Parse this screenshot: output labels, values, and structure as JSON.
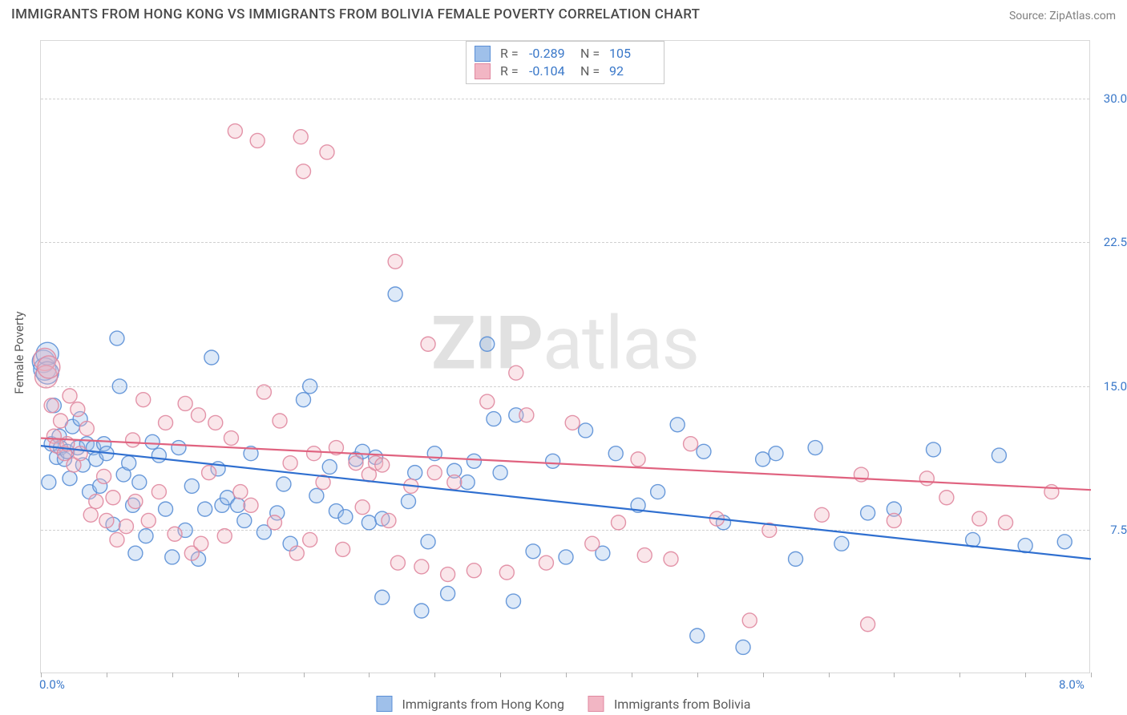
{
  "title": "IMMIGRANTS FROM HONG KONG VS IMMIGRANTS FROM BOLIVIA FEMALE POVERTY CORRELATION CHART",
  "source_label": "Source: ZipAtlas.com",
  "watermark_bold": "ZIP",
  "watermark_rest": "atlas",
  "y_axis_title": "Female Poverty",
  "chart": {
    "type": "scatter-with-regression",
    "xlim": [
      0.0,
      8.0
    ],
    "x_ticks_minor_step": 0.5,
    "x_labels": [
      {
        "v": 0.0,
        "text": "0.0%"
      },
      {
        "v": 8.0,
        "text": "8.0%"
      }
    ],
    "ylim": [
      0.0,
      33.0
    ],
    "y_gridlines": [
      7.5,
      15.0,
      22.5,
      30.0
    ],
    "y_labels": [
      "7.5%",
      "15.0%",
      "22.5%",
      "30.0%"
    ],
    "marker_radius": 9,
    "marker_radius_large": 14,
    "marker_fill_opacity": 0.35,
    "marker_stroke_opacity": 0.9,
    "grid_color": "#d0d0d0",
    "background_color": "#ffffff",
    "tick_label_color": "#3a78c9",
    "axis_title_color": "#5a5a5a",
    "series": [
      {
        "id": "hongkong",
        "label": "Immigrants from Hong Kong",
        "color_fill": "#9fc0ea",
        "color_stroke": "#5a8fd6",
        "line_color": "#2f6fd0",
        "line_width": 2.2,
        "R": "-0.289",
        "N": "105",
        "regression": {
          "x1": 0.0,
          "y1": 11.9,
          "x2": 8.0,
          "y2": 6.0
        },
        "points": [
          [
            0.02,
            16.3
          ],
          [
            0.03,
            15.9
          ],
          [
            0.05,
            16.7
          ],
          [
            0.05,
            15.7
          ],
          [
            0.06,
            10.0
          ],
          [
            0.08,
            12.0
          ],
          [
            0.1,
            14.0
          ],
          [
            0.12,
            11.3
          ],
          [
            0.14,
            12.4
          ],
          [
            0.15,
            11.8
          ],
          [
            0.18,
            11.2
          ],
          [
            0.2,
            11.6
          ],
          [
            0.22,
            10.2
          ],
          [
            0.24,
            12.9
          ],
          [
            0.28,
            11.8
          ],
          [
            0.3,
            13.3
          ],
          [
            0.32,
            10.9
          ],
          [
            0.35,
            12.0
          ],
          [
            0.37,
            9.5
          ],
          [
            0.4,
            11.8
          ],
          [
            0.42,
            11.2
          ],
          [
            0.45,
            9.8
          ],
          [
            0.48,
            12.0
          ],
          [
            0.5,
            11.5
          ],
          [
            0.55,
            7.8
          ],
          [
            0.58,
            17.5
          ],
          [
            0.6,
            15.0
          ],
          [
            0.63,
            10.4
          ],
          [
            0.67,
            11.0
          ],
          [
            0.7,
            8.8
          ],
          [
            0.72,
            6.3
          ],
          [
            0.75,
            10.0
          ],
          [
            0.8,
            7.2
          ],
          [
            0.85,
            12.1
          ],
          [
            0.9,
            11.4
          ],
          [
            0.95,
            8.6
          ],
          [
            1.0,
            6.1
          ],
          [
            1.05,
            11.8
          ],
          [
            1.1,
            7.5
          ],
          [
            1.15,
            9.8
          ],
          [
            1.2,
            6.0
          ],
          [
            1.25,
            8.6
          ],
          [
            1.3,
            16.5
          ],
          [
            1.35,
            10.7
          ],
          [
            1.38,
            8.8
          ],
          [
            1.42,
            9.2
          ],
          [
            1.5,
            8.8
          ],
          [
            1.55,
            8.0
          ],
          [
            1.6,
            11.5
          ],
          [
            1.7,
            7.4
          ],
          [
            1.8,
            8.4
          ],
          [
            1.85,
            9.9
          ],
          [
            1.9,
            6.8
          ],
          [
            2.0,
            14.3
          ],
          [
            2.05,
            15.0
          ],
          [
            2.1,
            9.3
          ],
          [
            2.2,
            10.8
          ],
          [
            2.25,
            8.5
          ],
          [
            2.32,
            8.2
          ],
          [
            2.4,
            11.2
          ],
          [
            2.45,
            11.6
          ],
          [
            2.5,
            7.9
          ],
          [
            2.55,
            11.3
          ],
          [
            2.6,
            8.1
          ],
          [
            2.6,
            4.0
          ],
          [
            2.7,
            19.8
          ],
          [
            2.8,
            9.0
          ],
          [
            2.85,
            10.5
          ],
          [
            2.9,
            3.3
          ],
          [
            2.95,
            6.9
          ],
          [
            3.0,
            11.5
          ],
          [
            3.1,
            4.2
          ],
          [
            3.15,
            10.6
          ],
          [
            3.25,
            10.0
          ],
          [
            3.3,
            11.1
          ],
          [
            3.4,
            17.2
          ],
          [
            3.45,
            13.3
          ],
          [
            3.5,
            10.5
          ],
          [
            3.6,
            3.8
          ],
          [
            3.62,
            13.5
          ],
          [
            3.75,
            6.4
          ],
          [
            3.9,
            11.1
          ],
          [
            4.0,
            6.1
          ],
          [
            4.15,
            12.7
          ],
          [
            4.28,
            6.3
          ],
          [
            4.38,
            11.5
          ],
          [
            4.55,
            8.8
          ],
          [
            4.7,
            9.5
          ],
          [
            4.85,
            13.0
          ],
          [
            5.0,
            2.0
          ],
          [
            5.05,
            11.6
          ],
          [
            5.2,
            7.9
          ],
          [
            5.35,
            1.4
          ],
          [
            5.5,
            11.2
          ],
          [
            5.6,
            11.5
          ],
          [
            5.75,
            6.0
          ],
          [
            5.9,
            11.8
          ],
          [
            6.1,
            6.8
          ],
          [
            6.3,
            8.4
          ],
          [
            6.5,
            8.6
          ],
          [
            6.8,
            11.7
          ],
          [
            7.1,
            7.0
          ],
          [
            7.3,
            11.4
          ],
          [
            7.5,
            6.7
          ],
          [
            7.8,
            6.9
          ]
        ]
      },
      {
        "id": "bolivia",
        "label": "Immigrants from Bolivia",
        "color_fill": "#f2b6c4",
        "color_stroke": "#e088a0",
        "line_color": "#e0627f",
        "line_width": 2.2,
        "R": "-0.104",
        "N": "92",
        "regression": {
          "x1": 0.0,
          "y1": 12.3,
          "x2": 8.0,
          "y2": 9.6
        },
        "points": [
          [
            0.03,
            16.4
          ],
          [
            0.04,
            15.5
          ],
          [
            0.06,
            16.0
          ],
          [
            0.08,
            14.0
          ],
          [
            0.1,
            12.4
          ],
          [
            0.12,
            11.9
          ],
          [
            0.15,
            13.2
          ],
          [
            0.18,
            11.5
          ],
          [
            0.2,
            12.0
          ],
          [
            0.22,
            14.5
          ],
          [
            0.25,
            10.9
          ],
          [
            0.28,
            13.8
          ],
          [
            0.3,
            11.5
          ],
          [
            0.35,
            12.8
          ],
          [
            0.38,
            8.3
          ],
          [
            0.42,
            9.0
          ],
          [
            0.48,
            10.3
          ],
          [
            0.5,
            8.0
          ],
          [
            0.55,
            9.2
          ],
          [
            0.58,
            7.0
          ],
          [
            0.65,
            7.7
          ],
          [
            0.7,
            12.2
          ],
          [
            0.72,
            9.0
          ],
          [
            0.78,
            14.3
          ],
          [
            0.82,
            8.0
          ],
          [
            0.9,
            9.5
          ],
          [
            0.95,
            13.1
          ],
          [
            1.02,
            7.3
          ],
          [
            1.1,
            14.1
          ],
          [
            1.15,
            6.3
          ],
          [
            1.2,
            13.5
          ],
          [
            1.22,
            6.8
          ],
          [
            1.28,
            10.5
          ],
          [
            1.33,
            13.1
          ],
          [
            1.4,
            7.2
          ],
          [
            1.45,
            12.3
          ],
          [
            1.48,
            28.3
          ],
          [
            1.52,
            9.5
          ],
          [
            1.6,
            8.8
          ],
          [
            1.65,
            27.8
          ],
          [
            1.7,
            14.7
          ],
          [
            1.78,
            7.9
          ],
          [
            1.82,
            13.2
          ],
          [
            1.9,
            11.0
          ],
          [
            1.95,
            6.3
          ],
          [
            1.98,
            28.0
          ],
          [
            2.0,
            26.2
          ],
          [
            2.05,
            7.0
          ],
          [
            2.08,
            11.5
          ],
          [
            2.15,
            10.0
          ],
          [
            2.18,
            27.2
          ],
          [
            2.25,
            11.8
          ],
          [
            2.3,
            6.5
          ],
          [
            2.4,
            11.0
          ],
          [
            2.45,
            8.7
          ],
          [
            2.5,
            10.4
          ],
          [
            2.55,
            11.0
          ],
          [
            2.6,
            10.9
          ],
          [
            2.65,
            8.0
          ],
          [
            2.7,
            21.5
          ],
          [
            2.72,
            5.8
          ],
          [
            2.82,
            9.8
          ],
          [
            2.9,
            5.6
          ],
          [
            2.95,
            17.2
          ],
          [
            3.0,
            10.5
          ],
          [
            3.1,
            5.2
          ],
          [
            3.15,
            10.0
          ],
          [
            3.3,
            5.4
          ],
          [
            3.4,
            14.2
          ],
          [
            3.55,
            5.3
          ],
          [
            3.62,
            15.7
          ],
          [
            3.7,
            13.5
          ],
          [
            3.85,
            5.8
          ],
          [
            4.05,
            13.1
          ],
          [
            4.2,
            6.8
          ],
          [
            4.4,
            7.9
          ],
          [
            4.55,
            11.2
          ],
          [
            4.6,
            6.2
          ],
          [
            4.8,
            6.0
          ],
          [
            4.95,
            12.0
          ],
          [
            5.15,
            8.1
          ],
          [
            5.4,
            2.8
          ],
          [
            5.55,
            7.5
          ],
          [
            5.95,
            8.3
          ],
          [
            6.25,
            10.4
          ],
          [
            6.3,
            2.6
          ],
          [
            6.5,
            8.0
          ],
          [
            6.75,
            10.2
          ],
          [
            6.9,
            9.2
          ],
          [
            7.15,
            8.1
          ],
          [
            7.35,
            7.9
          ],
          [
            7.7,
            9.5
          ]
        ]
      }
    ]
  },
  "stats_legend_labels": {
    "R": "R =",
    "N": "N ="
  }
}
